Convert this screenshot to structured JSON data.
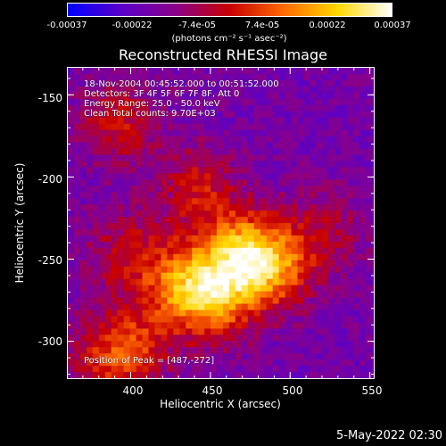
{
  "chart_data": {
    "type": "heatmap",
    "title": "Reconstructed RHESSI Image",
    "xlabel": "Heliocentric X (arcsec)",
    "ylabel": "Heliocentric Y (arcsec)",
    "xlim": [
      360,
      553
    ],
    "ylim": [
      -323,
      -133
    ],
    "x_ticks": [
      "400",
      "450",
      "500",
      "550"
    ],
    "x_tick_values": [
      400,
      450,
      500,
      550
    ],
    "y_ticks": [
      "-150",
      "-200",
      "-250",
      "-300"
    ],
    "y_tick_values": [
      -150,
      -200,
      -250,
      -300
    ],
    "colorbar": {
      "ticks": [
        "-0.00037",
        "-0.00022",
        "-7.4e-05",
        "7.4e-05",
        "0.00022",
        "0.00037"
      ],
      "tick_values": [
        -0.00037,
        -0.00022,
        -7.4e-05,
        7.4e-05,
        0.00022,
        0.00037
      ],
      "units": "(photons cm⁻² s⁻¹ asec⁻²)",
      "colors": [
        "#0000ff",
        "#5a00c8",
        "#8a0088",
        "#c80000",
        "#ff6a00",
        "#ffd800",
        "#ffffff"
      ]
    },
    "annotations": [
      "18-Nov-2004 00:45:52.000 to 00:51:52.000",
      "Detectors: 3F 4F 5F 6F 7F 8F, Att 0",
      "Energy Range: 25.0 - 50.0 keV",
      "Clean     Total counts: 9.70E+03"
    ],
    "peak_label": "Position of Peak = [487,-272]",
    "peak": [
      487,
      -272
    ],
    "sources": [
      {
        "x": 470,
        "y": -245,
        "amp": 0.00037
      },
      {
        "x": 450,
        "y": -272,
        "amp": 0.0003
      },
      {
        "x": 430,
        "y": -262,
        "amp": 0.00025
      },
      {
        "x": 490,
        "y": -255,
        "amp": 0.00022
      },
      {
        "x": 400,
        "y": -300,
        "amp": 0.00018
      },
      {
        "x": 440,
        "y": -205,
        "amp": 0.00018
      },
      {
        "x": 390,
        "y": -165,
        "amp": 0.00017
      },
      {
        "x": 395,
        "y": -245,
        "amp": 0.00015
      },
      {
        "x": 520,
        "y": -230,
        "amp": 0.00012
      },
      {
        "x": 380,
        "y": -310,
        "amp": 0.00015
      }
    ]
  },
  "footer": {
    "date": "5-May-2022 02:30"
  }
}
